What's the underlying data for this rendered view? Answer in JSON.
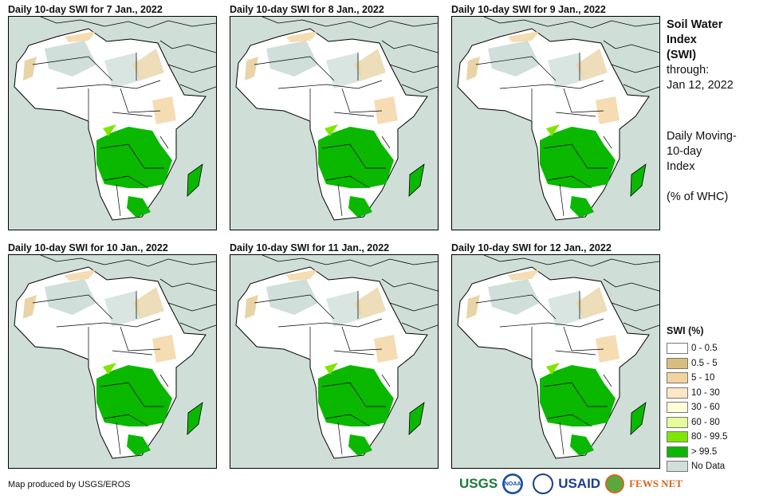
{
  "panels": [
    {
      "title": "Daily 10-day SWI for 7 Jan., 2022"
    },
    {
      "title": "Daily 10-day SWI for 8 Jan., 2022"
    },
    {
      "title": "Daily 10-day SWI for 9 Jan., 2022"
    },
    {
      "title": "Daily 10-day SWI for 10 Jan., 2022"
    },
    {
      "title": "Daily 10-day SWI for 11 Jan., 2022"
    },
    {
      "title": "Daily 10-day SWI for 12 Jan., 2022"
    }
  ],
  "side": {
    "title_1": "Soil Water",
    "title_2": "Index",
    "title_3": "(SWI)",
    "through_label": "through:",
    "through_date": "Jan 12, 2022",
    "desc_1": "Daily Moving-",
    "desc_2": "10-day",
    "desc_3": "Index",
    "units": "(% of WHC)"
  },
  "legend": {
    "title": "SWI (%)",
    "items": [
      {
        "label": "0 - 0.5",
        "color": "#ffffff"
      },
      {
        "label": "0.5 - 5",
        "color": "#d9bd7f"
      },
      {
        "label": "5 - 10",
        "color": "#f2d3a0"
      },
      {
        "label": "10 - 30",
        "color": "#fde6c6"
      },
      {
        "label": "30 - 60",
        "color": "#fefed9"
      },
      {
        "label": "60 - 80",
        "color": "#e6fb9a"
      },
      {
        "label": "80 - 99.5",
        "color": "#7ee600"
      },
      {
        "label": "> 99.5",
        "color": "#0ab800"
      },
      {
        "label": "No Data",
        "color": "#d0dfd9"
      }
    ]
  },
  "footer": {
    "credit": "Map produced by USGS/EROS",
    "logos": [
      "USGS",
      "NOAA",
      "USAID",
      "FEWS NET"
    ]
  }
}
